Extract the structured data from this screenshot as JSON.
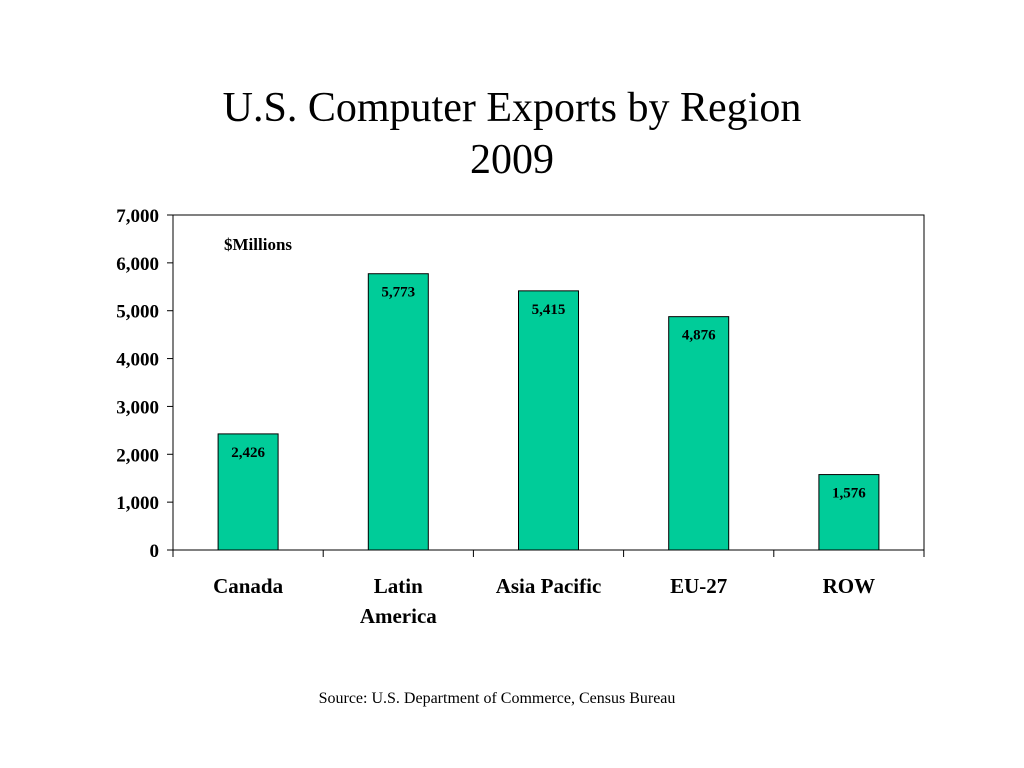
{
  "chart_data": {
    "type": "bar",
    "title": "U.S. Computer Exports by Region",
    "subtitle": "2009",
    "unit_label": "$Millions",
    "categories": [
      [
        "Canada"
      ],
      [
        "Latin",
        "America"
      ],
      [
        "Asia Pacific"
      ],
      [
        "EU-27"
      ],
      [
        "ROW"
      ]
    ],
    "values": [
      2426,
      5773,
      5415,
      4876,
      1576
    ],
    "value_labels": [
      "2,426",
      "5,773",
      "5,415",
      "4,876",
      "1,576"
    ],
    "yticks": [
      0,
      1000,
      2000,
      3000,
      4000,
      5000,
      6000,
      7000
    ],
    "ytick_labels": [
      "0",
      "1,000",
      "2,000",
      "3,000",
      "4,000",
      "5,000",
      "6,000",
      "7,000"
    ],
    "ylim": [
      0,
      7000
    ],
    "xlabel": "",
    "ylabel": "",
    "grid": false,
    "legend": false,
    "bar_color": "#00CC99",
    "bar_edge_color": "#000000",
    "source": "Source: U.S. Department of Commerce, Census Bureau"
  }
}
